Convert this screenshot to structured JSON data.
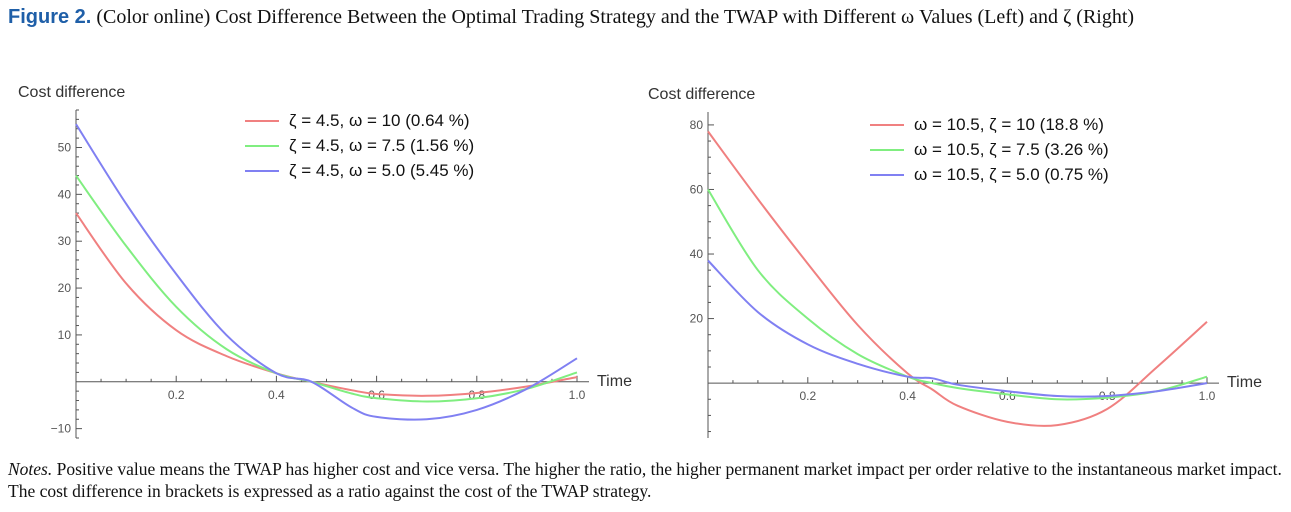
{
  "caption": {
    "label": "Figure 2.",
    "text": "(Color online) Cost Difference Between the Optimal Trading Strategy and the TWAP with Different ω Values (Left) and ζ (Right)"
  },
  "notes": {
    "label": "Notes.",
    "text": "Positive value means the TWAP has higher cost and vice versa. The higher the ratio, the higher permanent market impact per order relative to the instantaneous market impact. The cost difference in brackets is expressed as a ratio against the cost of the TWAP strategy."
  },
  "colors": {
    "red": "#f08080",
    "green": "#80ee80",
    "blue": "#8080f2",
    "axis": "#555555"
  },
  "chart_data": [
    {
      "type": "line",
      "title": "",
      "ylabel": "Cost difference",
      "xlabel": "Time",
      "xlim": [
        0,
        1.0
      ],
      "ylim": [
        -12,
        58
      ],
      "x_ticks": [
        "0.2",
        "0.4",
        "0.6",
        "0.8",
        "1.0"
      ],
      "y_ticks": [
        "50",
        "40",
        "30",
        "20",
        "10",
        "−10"
      ],
      "legend_position": "top",
      "grid": false,
      "x": [
        0,
        0.1,
        0.2,
        0.3,
        0.4,
        0.47,
        0.55,
        0.6,
        0.7,
        0.8,
        0.9,
        1.0
      ],
      "series": [
        {
          "name": "ζ = 4.5, ω = 10 (0.64 %)",
          "color": "red",
          "values": [
            36,
            21,
            11,
            5.5,
            1.8,
            0,
            -1.8,
            -2.6,
            -3.0,
            -2.4,
            -1.0,
            1.0
          ]
        },
        {
          "name": "ζ = 4.5, ω = 7.5 (1.56 %)",
          "color": "green",
          "values": [
            44,
            29,
            16,
            7,
            1.8,
            0,
            -2.5,
            -3.5,
            -4.2,
            -3.5,
            -1.5,
            2.0
          ]
        },
        {
          "name": "ζ = 4.5, ω = 5.0 (5.45 %)",
          "color": "blue",
          "values": [
            55,
            38,
            23,
            10,
            1.8,
            0,
            -5.5,
            -7.5,
            -8.0,
            -6.0,
            -1.5,
            5.0
          ]
        }
      ]
    },
    {
      "type": "line",
      "title": "",
      "ylabel": "Cost difference",
      "xlabel": "Time",
      "xlim": [
        0,
        1.0
      ],
      "ylim": [
        -17,
        84
      ],
      "x_ticks": [
        "0.2",
        "0.4",
        "0.6",
        "0.8",
        "1.0"
      ],
      "y_ticks": [
        "80",
        "60",
        "40",
        "20"
      ],
      "legend_position": "top-right",
      "grid": false,
      "x": [
        0,
        0.1,
        0.2,
        0.3,
        0.4,
        0.45,
        0.5,
        0.6,
        0.7,
        0.8,
        0.9,
        1.0
      ],
      "series": [
        {
          "name": "ω = 10.5, ζ = 10 (18.8 %)",
          "color": "red",
          "values": [
            78,
            57,
            37,
            18,
            3,
            -2,
            -7,
            -12,
            -13,
            -8,
            5,
            19
          ]
        },
        {
          "name": "ω = 10.5, ζ = 7.5 (3.26 %)",
          "color": "green",
          "values": [
            60,
            35,
            20,
            9,
            2,
            0,
            -1.5,
            -3.5,
            -5,
            -4.5,
            -2.5,
            2
          ]
        },
        {
          "name": "ω = 10.5, ζ = 5.0 (0.75 %)",
          "color": "blue",
          "values": [
            38,
            22,
            12,
            6,
            2,
            1.5,
            -0.5,
            -2.5,
            -4,
            -4,
            -2.5,
            0
          ]
        }
      ]
    }
  ]
}
